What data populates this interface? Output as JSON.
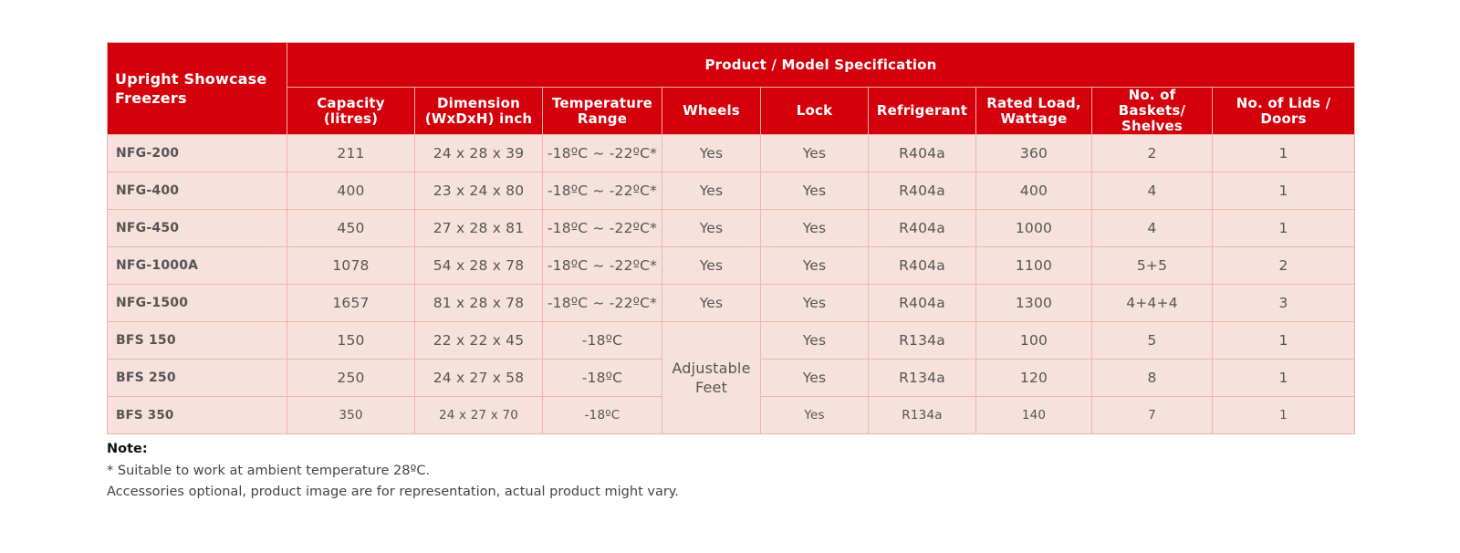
{
  "table": {
    "corner_label": "Upright Showcase Freezers",
    "group_header": "Product / Model Specification",
    "columns": [
      "Capacity (litres)",
      "Dimension (WxDxH) inch",
      "Temperature Range",
      "Wheels",
      "Lock",
      "Refrigerant",
      "Rated Load, Wattage",
      "No. of Baskets/ Shelves",
      "No. of Lids / Doors"
    ],
    "rows": [
      {
        "model": "NFG-200",
        "capacity": "211",
        "dimension": "24 x 28 x 39",
        "temperature": "-18ºC ~ -22ºC*",
        "wheels": "Yes",
        "lock": "Yes",
        "refrigerant": "R404a",
        "wattage": "360",
        "baskets": "2",
        "doors": "1"
      },
      {
        "model": "NFG-400",
        "capacity": "400",
        "dimension": "23 x 24 x 80",
        "temperature": "-18ºC ~ -22ºC*",
        "wheels": "Yes",
        "lock": "Yes",
        "refrigerant": "R404a",
        "wattage": "400",
        "baskets": "4",
        "doors": "1"
      },
      {
        "model": "NFG-450",
        "capacity": "450",
        "dimension": "27 x 28 x 81",
        "temperature": "-18ºC ~ -22ºC*",
        "wheels": "Yes",
        "lock": "Yes",
        "refrigerant": "R404a",
        "wattage": "1000",
        "baskets": "4",
        "doors": "1"
      },
      {
        "model": "NFG-1000A",
        "capacity": "1078",
        "dimension": "54 x 28 x 78",
        "temperature": "-18ºC ~ -22ºC*",
        "wheels": "Yes",
        "lock": "Yes",
        "refrigerant": "R404a",
        "wattage": "1100",
        "baskets": "5+5",
        "doors": "2"
      },
      {
        "model": "NFG-1500",
        "capacity": "1657",
        "dimension": "81 x 28 x 78",
        "temperature": "-18ºC ~ -22ºC*",
        "wheels": "Yes",
        "lock": "Yes",
        "refrigerant": "R404a",
        "wattage": "1300",
        "baskets": "4+4+4",
        "doors": "3"
      },
      {
        "model": "BFS 150",
        "capacity": "150",
        "dimension": "22 x 22 x 45",
        "temperature": "-18ºC",
        "lock": "Yes",
        "refrigerant": "R134a",
        "wattage": "100",
        "baskets": "5",
        "doors": "1"
      },
      {
        "model": "BFS 250",
        "capacity": "250",
        "dimension": "24 x 27 x 58",
        "temperature": "-18ºC",
        "lock": "Yes",
        "refrigerant": "R134a",
        "wattage": "120",
        "baskets": "8",
        "doors": "1"
      },
      {
        "model": "BFS 350",
        "capacity": "350",
        "dimension": "24 x 27 x 70",
        "temperature": "-18ºC",
        "lock": "Yes",
        "refrigerant": "R134a",
        "wattage": "140",
        "baskets": "7",
        "doors": "1"
      }
    ],
    "bfs_wheels_merged": "Adjustable Feet"
  },
  "notes": {
    "title": "Note:",
    "line1": "* Suitable to work at ambient temperature 28ºC.",
    "line2": "Accessories optional, product image are for representation, actual product might vary."
  }
}
